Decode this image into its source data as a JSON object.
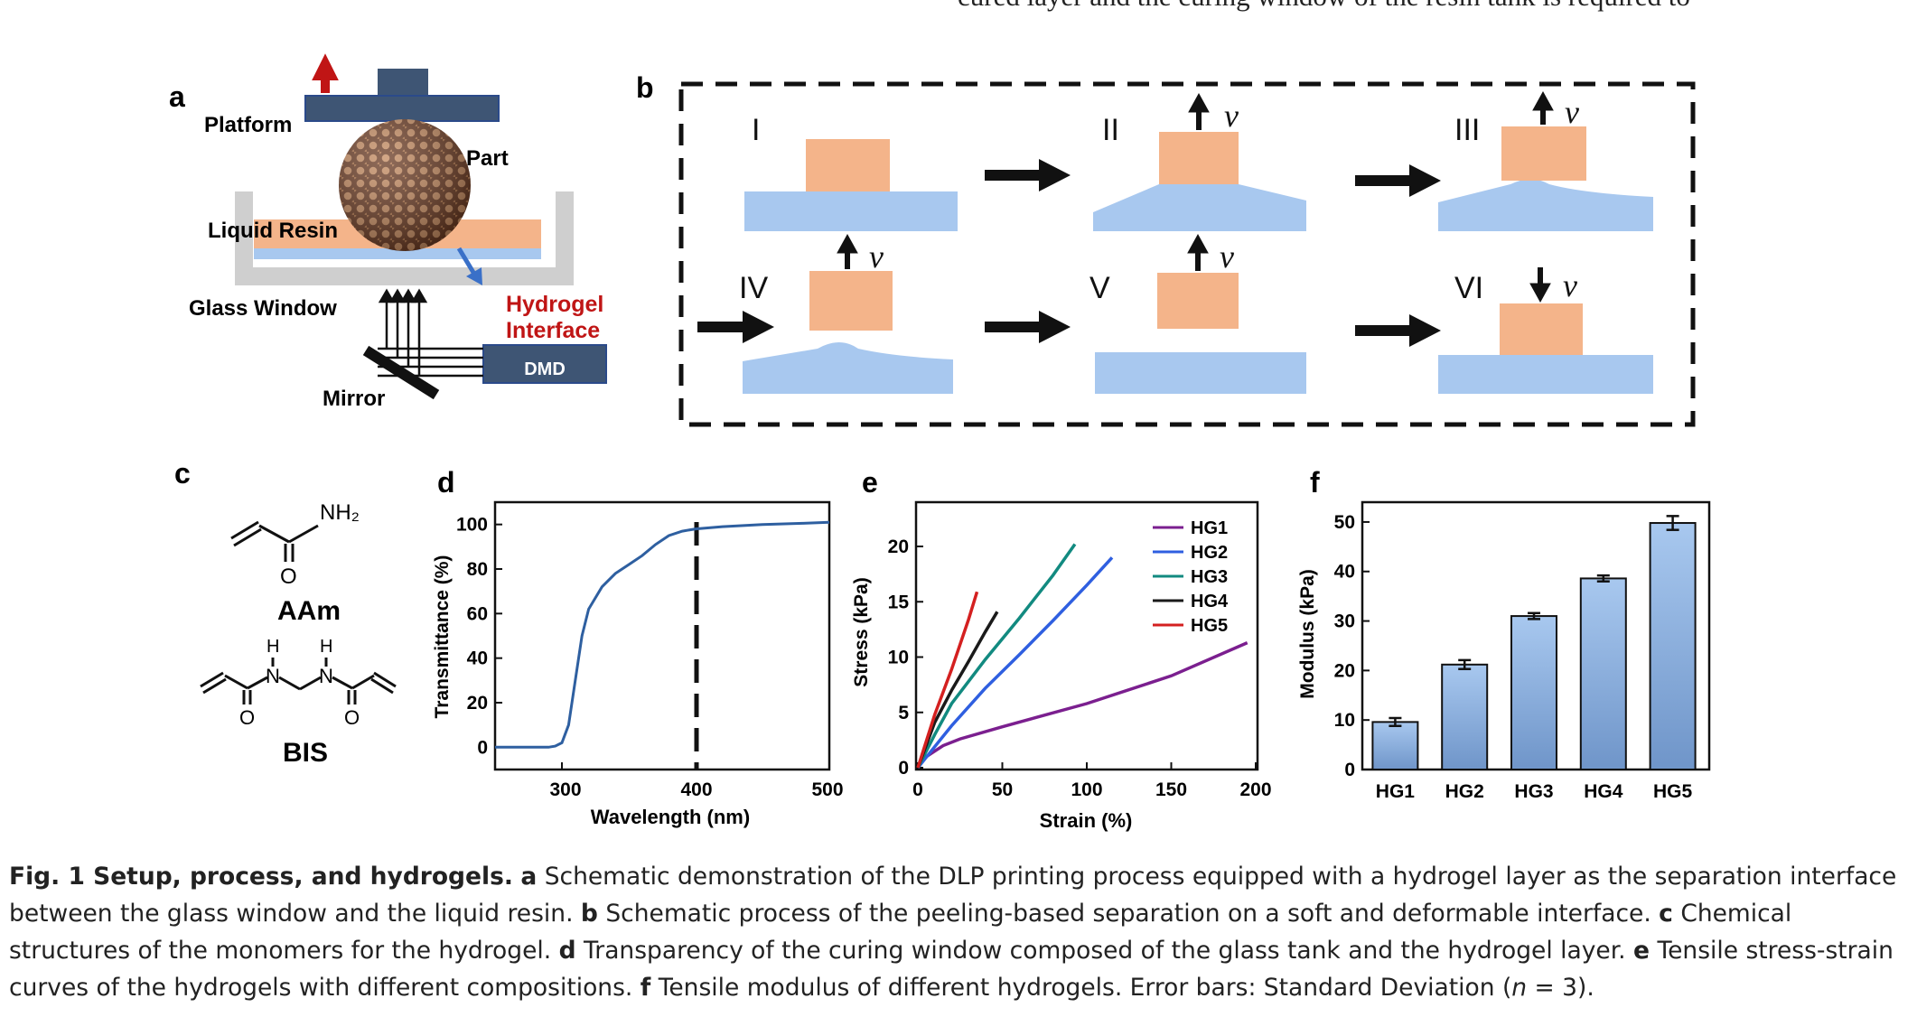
{
  "top_text": "cured layer and the curing window of the resin tank is required to",
  "panels": {
    "a": {
      "letter": "a",
      "labels": {
        "platform": "Platform",
        "part": "Part",
        "liquid_resin": "Liquid Resin",
        "glass_window": "Glass Window",
        "hydrogel_line1": "Hydrogel",
        "hydrogel_line2": "Interface",
        "dmd": "DMD",
        "mirror": "Mirror"
      }
    },
    "b": {
      "letter": "b",
      "steps": [
        "I",
        "II",
        "III",
        "IV",
        "V",
        "VI"
      ],
      "velocity_symbol": "v"
    },
    "c": {
      "letter": "c",
      "nh2": "NH₂",
      "o": "O",
      "h": "H",
      "n": "N",
      "aam": "AAm",
      "bis": "BIS"
    },
    "d": {
      "letter": "d",
      "xlabel": "Wavelength (nm)",
      "ylabel": "Transmittance (%)",
      "xticks": [
        "300",
        "400",
        "500"
      ],
      "yticks": [
        "0",
        "20",
        "40",
        "60",
        "80",
        "100"
      ]
    },
    "e": {
      "letter": "e",
      "xlabel": "Strain (%)",
      "ylabel": "Stress (kPa)",
      "xticks": [
        "0",
        "50",
        "100",
        "150",
        "200"
      ],
      "yticks": [
        "0",
        "5",
        "10",
        "15",
        "20"
      ]
    },
    "f": {
      "letter": "f",
      "ylabel": "Modulus (kPa)",
      "yticks": [
        "0",
        "10",
        "20",
        "30",
        "40",
        "50"
      ]
    }
  },
  "chart_data": [
    {
      "panel": "d",
      "type": "line",
      "xlabel": "Wavelength (nm)",
      "ylabel": "Transmittance (%)",
      "xlim": [
        250,
        500
      ],
      "ylim": [
        -10,
        110
      ],
      "annotation": "dashed vertical line at 400 nm",
      "series": [
        {
          "color": "#2e5fa0",
          "x": [
            250,
            280,
            290,
            295,
            300,
            305,
            310,
            315,
            320,
            330,
            340,
            350,
            360,
            370,
            380,
            390,
            400,
            420,
            450,
            480,
            500
          ],
          "y": [
            0,
            0,
            0,
            0.5,
            2,
            10,
            30,
            50,
            62,
            72,
            78,
            82,
            86,
            91,
            95,
            97,
            98,
            99,
            100,
            100.5,
            101
          ]
        }
      ]
    },
    {
      "panel": "e",
      "type": "line",
      "xlabel": "Strain (%)",
      "ylabel": "Stress (kPa)",
      "xlim": [
        0,
        200
      ],
      "ylim": [
        0,
        24
      ],
      "legend": "top-right",
      "series": [
        {
          "name": "HG1",
          "color": "#7b1f8f",
          "x": [
            0,
            5,
            15,
            25,
            50,
            100,
            150,
            195
          ],
          "y": [
            0,
            1.0,
            2.0,
            2.6,
            3.7,
            5.8,
            8.3,
            11.3
          ]
        },
        {
          "name": "HG2",
          "color": "#2f5fe0",
          "x": [
            0,
            10,
            20,
            40,
            60,
            80,
            100,
            115
          ],
          "y": [
            0,
            1.9,
            3.8,
            7.2,
            10.2,
            13.3,
            16.5,
            19.0
          ]
        },
        {
          "name": "HG3",
          "color": "#128a80",
          "x": [
            0,
            10,
            20,
            40,
            60,
            80,
            93
          ],
          "y": [
            0,
            3.0,
            5.8,
            9.8,
            13.5,
            17.4,
            20.2
          ]
        },
        {
          "name": "HG4",
          "color": "#1a1a1a",
          "x": [
            0,
            10,
            20,
            30,
            40,
            47
          ],
          "y": [
            0,
            4.1,
            7.0,
            9.6,
            12.3,
            14.1
          ]
        },
        {
          "name": "HG5",
          "color": "#d42020",
          "x": [
            0,
            10,
            20,
            30,
            35
          ],
          "y": [
            0,
            4.8,
            8.9,
            13.4,
            15.9
          ]
        }
      ]
    },
    {
      "panel": "f",
      "type": "bar",
      "ylabel": "Modulus (kPa)",
      "ylim": [
        0,
        54
      ],
      "categories": [
        "HG1",
        "HG2",
        "HG3",
        "HG4",
        "HG5"
      ],
      "values": [
        9.6,
        21.2,
        31.0,
        38.6,
        49.8
      ],
      "errors": [
        0.8,
        0.9,
        0.6,
        0.6,
        1.4
      ],
      "bar_color": "#8bb3e3"
    }
  ],
  "caption": {
    "a_lead": "Fig. 1 Setup, process, and hydrogels.",
    "a": "a",
    "a_text": " Schematic demonstration of the DLP printing process equipped with a hydrogel layer as the separation interface between the glass window and the liquid resin. ",
    "b": "b",
    "b_text": " Schematic process of the peeling-based separation on a soft and deformable interface. ",
    "c": "c",
    "c_text": " Chemical structures of the monomers for the hydrogel. ",
    "d": "d",
    "d_text": " Transparency of the curing window composed of the glass tank and the hydrogel layer. ",
    "e": "e",
    "e_text": " Tensile stress-strain curves of the hydrogels with different compositions. ",
    "f": "f",
    "f_text": " Tensile modulus of different hydrogels. Error bars: Standard Deviation (",
    "n": "n",
    "f_end": " = 3)."
  }
}
